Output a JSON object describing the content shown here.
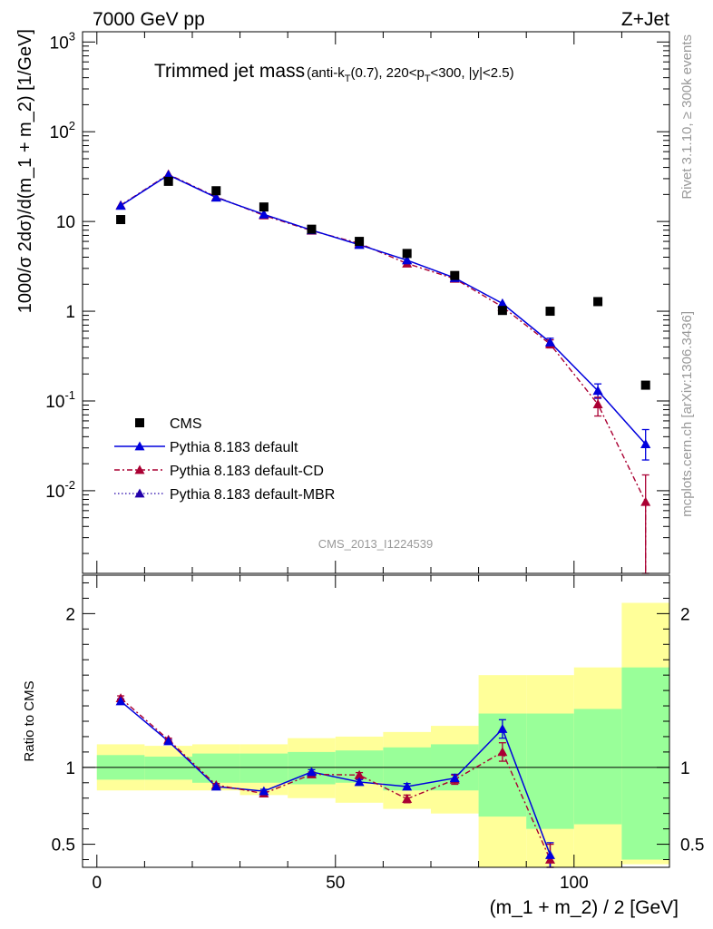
{
  "header": {
    "left": "7000 GeV pp",
    "right": "Z+Jet"
  },
  "side_labels": {
    "rivet": "Rivet 3.1.10, ≥ 300k events",
    "mcplots": "mcplots.cern.ch [arXiv:1306.3436]"
  },
  "analysis_id": "CMS_2013_I1224539",
  "colors": {
    "cms": "#000000",
    "default": "#0000dd",
    "cd": "#aa0033",
    "mbr": "#2200aa",
    "band_green": "#99ff99",
    "band_yellow": "#ffff99"
  },
  "chart_data": [
    {
      "type": "scatter",
      "panel": "main",
      "title_main": "Trimmed jet mass",
      "title_sub": "(anti-k_T(0.7), 220<p_T<300, |y|<2.5)",
      "ylabel": "1000/σ 2dσ)/d(m_1 + m_2) [1/GeV]",
      "yscale": "log",
      "ylim": [
        0.0012,
        1300
      ],
      "xlim": [
        -3,
        120
      ],
      "ytick_labels": [
        "10^{-2}",
        "10^{-1}",
        "1",
        "10",
        "10^{2}",
        "10^{3}"
      ],
      "x": [
        5,
        15,
        25,
        35,
        45,
        55,
        65,
        75,
        85,
        95,
        105,
        115
      ],
      "series": [
        {
          "name": "CMS",
          "key": "cms",
          "values": [
            10.5,
            28,
            22,
            14.5,
            8.2,
            6.0,
            4.4,
            2.5,
            1.02,
            1.0,
            1.28,
            0.15
          ]
        },
        {
          "name": "Pythia 8.183 default",
          "key": "default",
          "values": [
            15,
            33,
            18.5,
            12,
            8.0,
            5.5,
            3.7,
            2.35,
            1.22,
            0.45,
            0.13,
            0.033
          ],
          "err_hi": [
            null,
            null,
            null,
            null,
            null,
            null,
            null,
            null,
            null,
            0.5,
            0.155,
            0.048
          ],
          "err_lo": [
            null,
            null,
            null,
            null,
            null,
            null,
            null,
            null,
            null,
            0.41,
            0.107,
            0.022
          ]
        },
        {
          "name": "Pythia 8.183 default-CD",
          "key": "cd",
          "values": [
            15.2,
            33.5,
            18.8,
            11.7,
            7.9,
            5.7,
            3.4,
            2.3,
            1.12,
            0.43,
            0.092,
            0.0075
          ],
          "err_hi": [
            null,
            null,
            null,
            null,
            null,
            null,
            null,
            null,
            null,
            0.48,
            0.11,
            0.015
          ],
          "err_lo": [
            null,
            null,
            null,
            null,
            null,
            null,
            null,
            null,
            null,
            0.39,
            0.068,
            0.0012
          ]
        },
        {
          "name": "Pythia 8.183 default-MBR",
          "key": "mbr",
          "values": [
            15,
            33,
            18.5,
            12,
            8.0,
            5.5,
            3.7,
            2.35,
            1.22,
            0.45,
            0.13,
            0.033
          ]
        }
      ],
      "legend": [
        "CMS",
        "Pythia 8.183 default",
        "Pythia 8.183 default-CD",
        "Pythia 8.183 default-MBR"
      ],
      "legend_position": "lower-left"
    },
    {
      "type": "line",
      "panel": "ratio",
      "ylabel": "Ratio to CMS",
      "xlabel": "(m_1 + m_2) / 2 [GeV]",
      "ylim": [
        0.35,
        2.25
      ],
      "xlim": [
        -3,
        120
      ],
      "yticks": [
        0.5,
        1,
        2
      ],
      "ytick_labels": [
        "0.5",
        "1",
        "2"
      ],
      "xticks": [
        0,
        50,
        100
      ],
      "xtick_labels": [
        "0",
        "50",
        "100"
      ],
      "bins": [
        [
          0,
          10
        ],
        [
          10,
          20
        ],
        [
          20,
          30
        ],
        [
          30,
          40
        ],
        [
          40,
          50
        ],
        [
          50,
          60
        ],
        [
          60,
          70
        ],
        [
          70,
          80
        ],
        [
          80,
          90
        ],
        [
          90,
          100
        ],
        [
          100,
          110
        ],
        [
          110,
          120
        ]
      ],
      "band_green": [
        [
          0.92,
          1.08
        ],
        [
          0.92,
          1.07
        ],
        [
          0.9,
          1.09
        ],
        [
          0.9,
          1.09
        ],
        [
          0.89,
          1.1
        ],
        [
          0.9,
          1.11
        ],
        [
          0.85,
          1.13
        ],
        [
          0.85,
          1.15
        ],
        [
          0.68,
          1.35
        ],
        [
          0.6,
          1.35
        ],
        [
          0.63,
          1.38
        ],
        [
          0.4,
          1.65
        ]
      ],
      "band_yellow": [
        [
          0.85,
          1.15
        ],
        [
          0.85,
          1.14
        ],
        [
          0.85,
          1.15
        ],
        [
          0.82,
          1.15
        ],
        [
          0.8,
          1.19
        ],
        [
          0.77,
          1.2
        ],
        [
          0.73,
          1.23
        ],
        [
          0.7,
          1.27
        ],
        [
          0.3,
          1.6
        ],
        [
          0.3,
          1.6
        ],
        [
          0.3,
          1.65
        ],
        [
          0.37,
          2.07
        ]
      ],
      "x": [
        5,
        15,
        25,
        35,
        45,
        55,
        65,
        75,
        85,
        95,
        105,
        115
      ],
      "series": [
        {
          "name": "Pythia 8.183 default",
          "key": "default",
          "values": [
            1.43,
            1.17,
            0.875,
            0.845,
            0.97,
            0.905,
            0.875,
            0.93,
            1.25,
            0.43,
            null,
            null
          ],
          "err": [
            0.015,
            0.01,
            0.01,
            0.012,
            0.015,
            0.016,
            0.02,
            0.025,
            0.06,
            0.08,
            null,
            null
          ]
        },
        {
          "name": "Pythia 8.183 default-CD",
          "key": "cd",
          "values": [
            1.45,
            1.18,
            0.885,
            0.83,
            0.955,
            0.95,
            0.795,
            0.92,
            1.1,
            0.4,
            null,
            null
          ],
          "err": [
            0.015,
            0.01,
            0.01,
            0.012,
            0.015,
            0.016,
            0.025,
            0.03,
            0.06,
            0.1,
            null,
            null
          ]
        }
      ]
    }
  ]
}
